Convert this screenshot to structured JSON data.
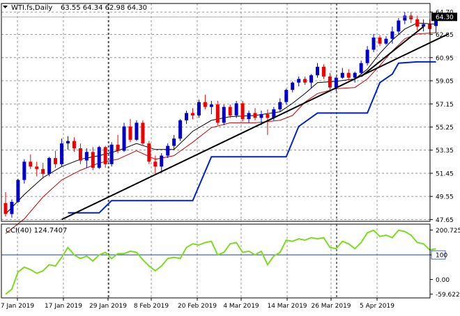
{
  "header": {
    "symbol": "WTI.fs,Daily",
    "ohlc": "63.55 64.34 62.98 64.30"
  },
  "colors": {
    "bull": "#0000cc",
    "bear": "#ee0000",
    "grid": "#7f7f7f",
    "ma_fast": "#000000",
    "ma_slow": "#cc0000",
    "stop_line": "#0022cc",
    "trendline": "#000000",
    "cci_line": "#7cdc1e",
    "level_line": "#1f3fb0",
    "price_tag_bg": "#000000"
  },
  "chart_data": [
    {
      "type": "candlestick",
      "ylim": [
        47.5,
        65.4
      ],
      "y_ticks": [
        "64.70",
        "62.85",
        "60.95",
        "59.05",
        "57.15",
        "55.25",
        "53.35",
        "51.45",
        "49.55",
        "47.65"
      ],
      "x_labels": [
        "7 Jan 2019",
        "17 Jan 2019",
        "29 Jan 2019",
        "8 Feb 2019",
        "20 Feb 2019",
        "4 Mar 2019",
        "14 Mar 2019",
        "26 Mar 2019",
        "5 Apr 2019"
      ],
      "last_price": "64.30",
      "candles": [
        [
          49.0,
          49.9,
          47.9,
          48.1
        ],
        [
          48.1,
          49.3,
          47.8,
          49.1
        ],
        [
          49.1,
          51.0,
          49.0,
          50.9
        ],
        [
          50.9,
          52.6,
          50.6,
          52.4
        ],
        [
          52.4,
          53.0,
          51.8,
          52.0
        ],
        [
          52.0,
          52.4,
          51.2,
          51.8
        ],
        [
          51.8,
          52.3,
          51.0,
          51.4
        ],
        [
          51.4,
          52.8,
          51.2,
          52.7
        ],
        [
          52.7,
          53.3,
          51.9,
          52.2
        ],
        [
          52.2,
          54.3,
          52.0,
          53.9
        ],
        [
          53.9,
          54.5,
          53.4,
          54.1
        ],
        [
          54.1,
          54.4,
          53.2,
          53.5
        ],
        [
          53.5,
          53.9,
          52.2,
          52.5
        ],
        [
          52.5,
          53.5,
          51.9,
          53.2
        ],
        [
          53.2,
          53.6,
          51.7,
          51.9
        ],
        [
          51.9,
          53.7,
          51.8,
          53.6
        ],
        [
          53.6,
          53.7,
          51.9,
          52.2
        ],
        [
          52.2,
          54.0,
          52.0,
          53.8
        ],
        [
          53.8,
          54.6,
          53.1,
          53.3
        ],
        [
          53.3,
          55.6,
          53.2,
          55.3
        ],
        [
          55.3,
          55.9,
          54.0,
          54.2
        ],
        [
          54.2,
          55.8,
          54.1,
          55.6
        ],
        [
          55.6,
          55.8,
          53.7,
          53.9
        ],
        [
          53.9,
          54.1,
          52.2,
          52.4
        ],
        [
          52.4,
          52.9,
          51.3,
          52.0
        ],
        [
          52.0,
          53.1,
          51.5,
          52.9
        ],
        [
          52.9,
          53.9,
          52.7,
          53.7
        ],
        [
          53.7,
          54.6,
          53.4,
          54.3
        ],
        [
          54.3,
          55.9,
          54.1,
          55.8
        ],
        [
          55.8,
          56.6,
          55.5,
          56.4
        ],
        [
          56.4,
          56.8,
          55.9,
          56.2
        ],
        [
          56.2,
          57.5,
          56.0,
          57.3
        ],
        [
          57.3,
          57.9,
          56.7,
          56.9
        ],
        [
          56.9,
          57.4,
          56.3,
          57.1
        ],
        [
          57.1,
          57.4,
          55.4,
          55.6
        ],
        [
          55.6,
          57.1,
          55.4,
          56.9
        ],
        [
          56.9,
          57.1,
          56.0,
          56.2
        ],
        [
          56.2,
          57.4,
          56.0,
          57.2
        ],
        [
          57.2,
          57.4,
          55.7,
          55.9
        ],
        [
          55.9,
          56.6,
          55.6,
          56.4
        ],
        [
          56.4,
          56.8,
          55.8,
          56.0
        ],
        [
          56.0,
          56.6,
          55.4,
          56.3
        ],
        [
          56.3,
          56.7,
          54.6,
          56.0
        ],
        [
          56.0,
          56.9,
          55.8,
          56.7
        ],
        [
          56.7,
          57.6,
          56.5,
          57.3
        ],
        [
          57.3,
          58.4,
          57.1,
          58.3
        ],
        [
          58.3,
          59.0,
          58.1,
          58.9
        ],
        [
          58.9,
          59.4,
          58.6,
          59.2
        ],
        [
          59.2,
          59.4,
          58.7,
          58.9
        ],
        [
          58.9,
          59.6,
          58.4,
          59.5
        ],
        [
          59.5,
          60.5,
          59.3,
          60.2
        ],
        [
          60.2,
          60.4,
          59.2,
          59.4
        ],
        [
          59.4,
          59.7,
          58.3,
          58.5
        ],
        [
          58.5,
          59.4,
          58.2,
          59.3
        ],
        [
          59.3,
          60.1,
          59.2,
          59.7
        ],
        [
          59.7,
          60.0,
          59.1,
          59.3
        ],
        [
          59.3,
          59.8,
          58.9,
          59.7
        ],
        [
          59.7,
          60.7,
          59.6,
          60.5
        ],
        [
          60.5,
          61.9,
          60.3,
          61.6
        ],
        [
          61.6,
          62.9,
          61.4,
          62.6
        ],
        [
          62.6,
          62.8,
          61.9,
          62.1
        ],
        [
          62.1,
          62.7,
          62.0,
          62.5
        ],
        [
          62.5,
          63.5,
          62.1,
          63.1
        ],
        [
          63.1,
          64.2,
          62.9,
          64.0
        ],
        [
          64.0,
          64.7,
          63.7,
          64.4
        ],
        [
          64.4,
          64.7,
          63.8,
          64.1
        ],
        [
          64.1,
          64.4,
          63.2,
          63.5
        ],
        [
          63.5,
          64.1,
          63.1,
          63.7
        ],
        [
          63.7,
          64.1,
          62.9,
          63.3
        ],
        [
          63.55,
          64.34,
          62.98,
          64.3
        ]
      ],
      "ma_fast": [
        [
          0,
          48.1
        ],
        [
          3,
          49.7
        ],
        [
          6,
          51.1
        ],
        [
          9,
          52.0
        ],
        [
          12,
          52.6
        ],
        [
          15,
          52.9
        ],
        [
          18,
          53.3
        ],
        [
          21,
          53.9
        ],
        [
          24,
          53.4
        ],
        [
          27,
          53.4
        ],
        [
          30,
          54.9
        ],
        [
          33,
          55.8
        ],
        [
          36,
          56.1
        ],
        [
          40,
          56.2
        ],
        [
          44,
          56.5
        ],
        [
          46,
          57.2
        ],
        [
          48,
          58.0
        ],
        [
          50,
          58.9
        ],
        [
          53,
          59.0
        ],
        [
          56,
          59.2
        ],
        [
          58,
          60.0
        ],
        [
          60,
          61.3
        ],
        [
          62,
          62.4
        ],
        [
          64,
          63.3
        ],
        [
          66,
          63.8
        ],
        [
          69,
          63.7
        ]
      ],
      "ma_slow": [
        [
          0,
          46.5
        ],
        [
          3,
          47.7
        ],
        [
          6,
          49.5
        ],
        [
          9,
          50.9
        ],
        [
          12,
          51.7
        ],
        [
          15,
          52.3
        ],
        [
          18,
          52.6
        ],
        [
          21,
          53.3
        ],
        [
          24,
          52.6
        ],
        [
          27,
          52.9
        ],
        [
          30,
          54.0
        ],
        [
          33,
          55.2
        ],
        [
          36,
          55.6
        ],
        [
          40,
          55.6
        ],
        [
          44,
          55.8
        ],
        [
          46,
          56.2
        ],
        [
          48,
          57.3
        ],
        [
          50,
          58.0
        ],
        [
          53,
          58.4
        ],
        [
          56,
          58.5
        ],
        [
          58,
          59.2
        ],
        [
          60,
          60.3
        ],
        [
          62,
          61.5
        ],
        [
          64,
          62.5
        ],
        [
          66,
          62.9
        ],
        [
          69,
          63.0
        ]
      ],
      "stop_line": [
        [
          10,
          48.2
        ],
        [
          15,
          48.2
        ],
        [
          17,
          49.2
        ],
        [
          30,
          49.2
        ],
        [
          32,
          51.6
        ],
        [
          33,
          52.8
        ],
        [
          45,
          52.8
        ],
        [
          47,
          55.3
        ],
        [
          50,
          56.4
        ],
        [
          58,
          56.4
        ],
        [
          60,
          58.9
        ],
        [
          62,
          59.6
        ],
        [
          63,
          60.5
        ],
        [
          66,
          60.6
        ],
        [
          69,
          60.6
        ]
      ],
      "trendlines": [
        [
          [
            9,
            47.65
          ],
          [
            71,
            62.9
          ]
        ],
        [
          [
            57,
            59.4
          ],
          [
            67,
            63.5
          ]
        ]
      ]
    },
    {
      "type": "line",
      "label": "CCI(40) 124.7407",
      "ylim": [
        -75,
        225
      ],
      "y_ticks": [
        "200.7251",
        "100",
        "0.00",
        "-59.6226"
      ],
      "levels": [
        100
      ],
      "values": [
        -60,
        -40,
        30,
        50,
        40,
        25,
        35,
        60,
        55,
        90,
        130,
        100,
        85,
        95,
        75,
        100,
        110,
        85,
        105,
        105,
        115,
        110,
        80,
        55,
        35,
        55,
        85,
        90,
        85,
        130,
        145,
        140,
        150,
        155,
        100,
        110,
        145,
        150,
        110,
        115,
        100,
        115,
        60,
        95,
        110,
        160,
        155,
        165,
        160,
        170,
        165,
        170,
        130,
        125,
        155,
        145,
        125,
        150,
        190,
        200,
        175,
        180,
        170,
        200,
        195,
        180,
        150,
        145,
        120,
        124.74
      ]
    }
  ]
}
